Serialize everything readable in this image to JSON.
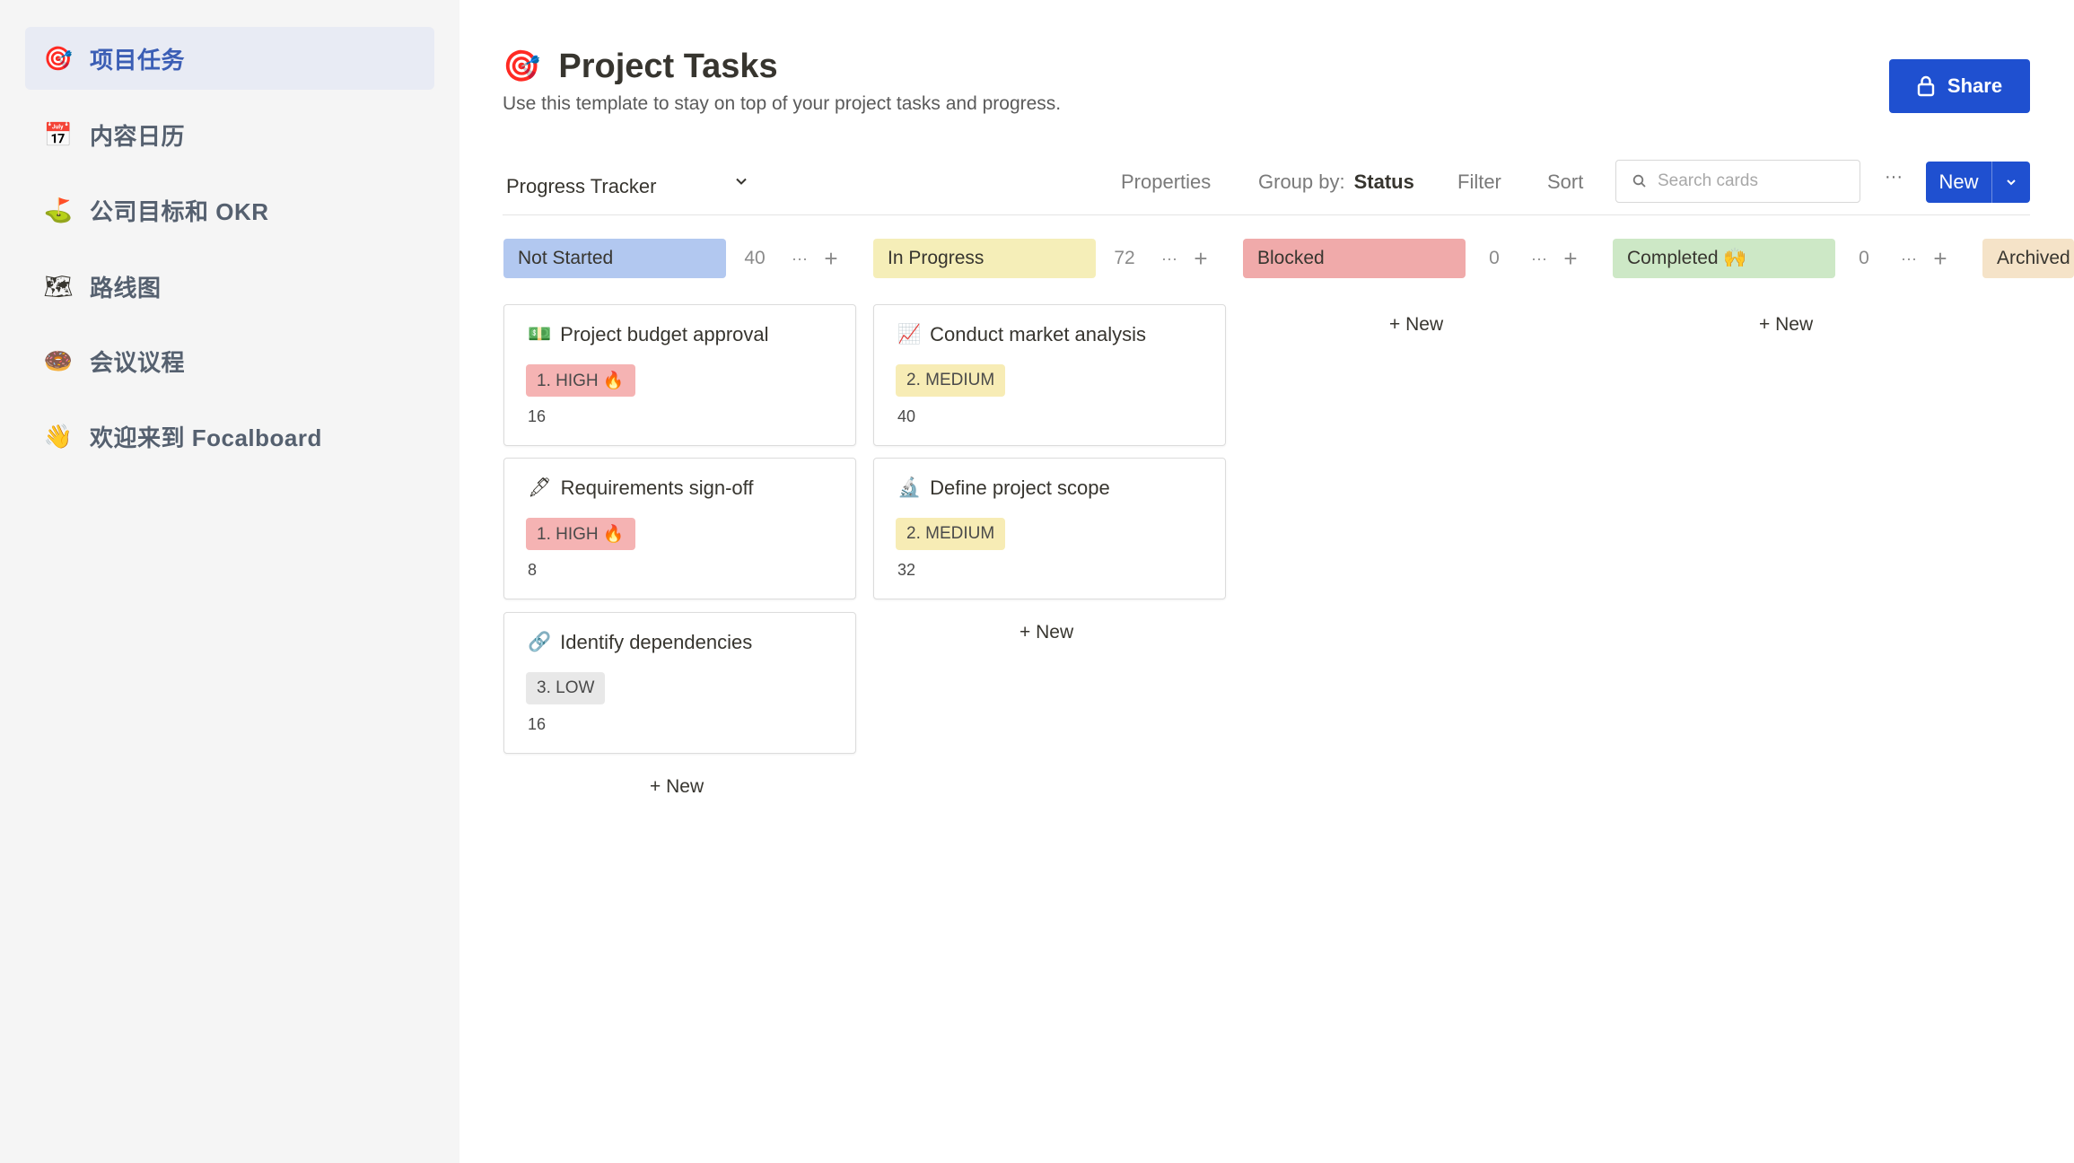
{
  "sidebar": {
    "items": [
      {
        "icon": "🎯",
        "label": "项目任务",
        "active": true
      },
      {
        "icon": "📅",
        "label": "内容日历"
      },
      {
        "icon": "⛳",
        "label": "公司目标和 OKR"
      },
      {
        "icon": "🗺",
        "label": "路线图"
      },
      {
        "icon": "🍩",
        "label": "会议议程"
      },
      {
        "icon": "👋",
        "label": "欢迎来到 Focalboard"
      }
    ]
  },
  "header": {
    "icon": "🎯",
    "title": "Project Tasks",
    "subtitle": "Use this template to stay on top of your project tasks and progress.",
    "share_label": "Share"
  },
  "toolbar": {
    "view_name": "Progress Tracker",
    "properties_label": "Properties",
    "group_by_label": "Group by:",
    "group_by_value": "Status",
    "filter_label": "Filter",
    "sort_label": "Sort",
    "search_placeholder": "Search cards",
    "more_label": "···",
    "new_label": "New"
  },
  "board": {
    "add_new_label": "+ New",
    "columns": [
      {
        "label": "Not Started",
        "count": "40",
        "color": "#b2c8f0"
      },
      {
        "label": "In Progress",
        "count": "72",
        "color": "#f5eeb8"
      },
      {
        "label": "Blocked",
        "count": "0",
        "color": "#f0aaaa"
      },
      {
        "label": "Completed 🙌",
        "count": "0",
        "color": "#cde8c6"
      },
      {
        "label": "Archived",
        "count": "",
        "color": "#f5e3c8"
      }
    ],
    "cards": [
      {
        "icon": "💵",
        "title": "Project budget approval",
        "priority": "1. HIGH 🔥",
        "value": "16",
        "column": 0
      },
      {
        "icon": "🖋",
        "title": "Requirements sign-off",
        "priority": "1. HIGH 🔥",
        "value": "8",
        "column": 0
      },
      {
        "icon": "🔗",
        "title": "Identify dependencies",
        "priority": "3. LOW",
        "value": "16",
        "column": 0
      },
      {
        "icon": "📈",
        "title": "Conduct market analysis",
        "priority": "2. MEDIUM",
        "value": "40",
        "column": 1
      },
      {
        "icon": "🔬",
        "title": "Define project scope",
        "priority": "2. MEDIUM",
        "value": "32",
        "column": 1
      }
    ],
    "priority_colors": {
      "high": "#f5b3b3",
      "medium": "#f7ecb5",
      "low": "#e8e8e8"
    }
  }
}
